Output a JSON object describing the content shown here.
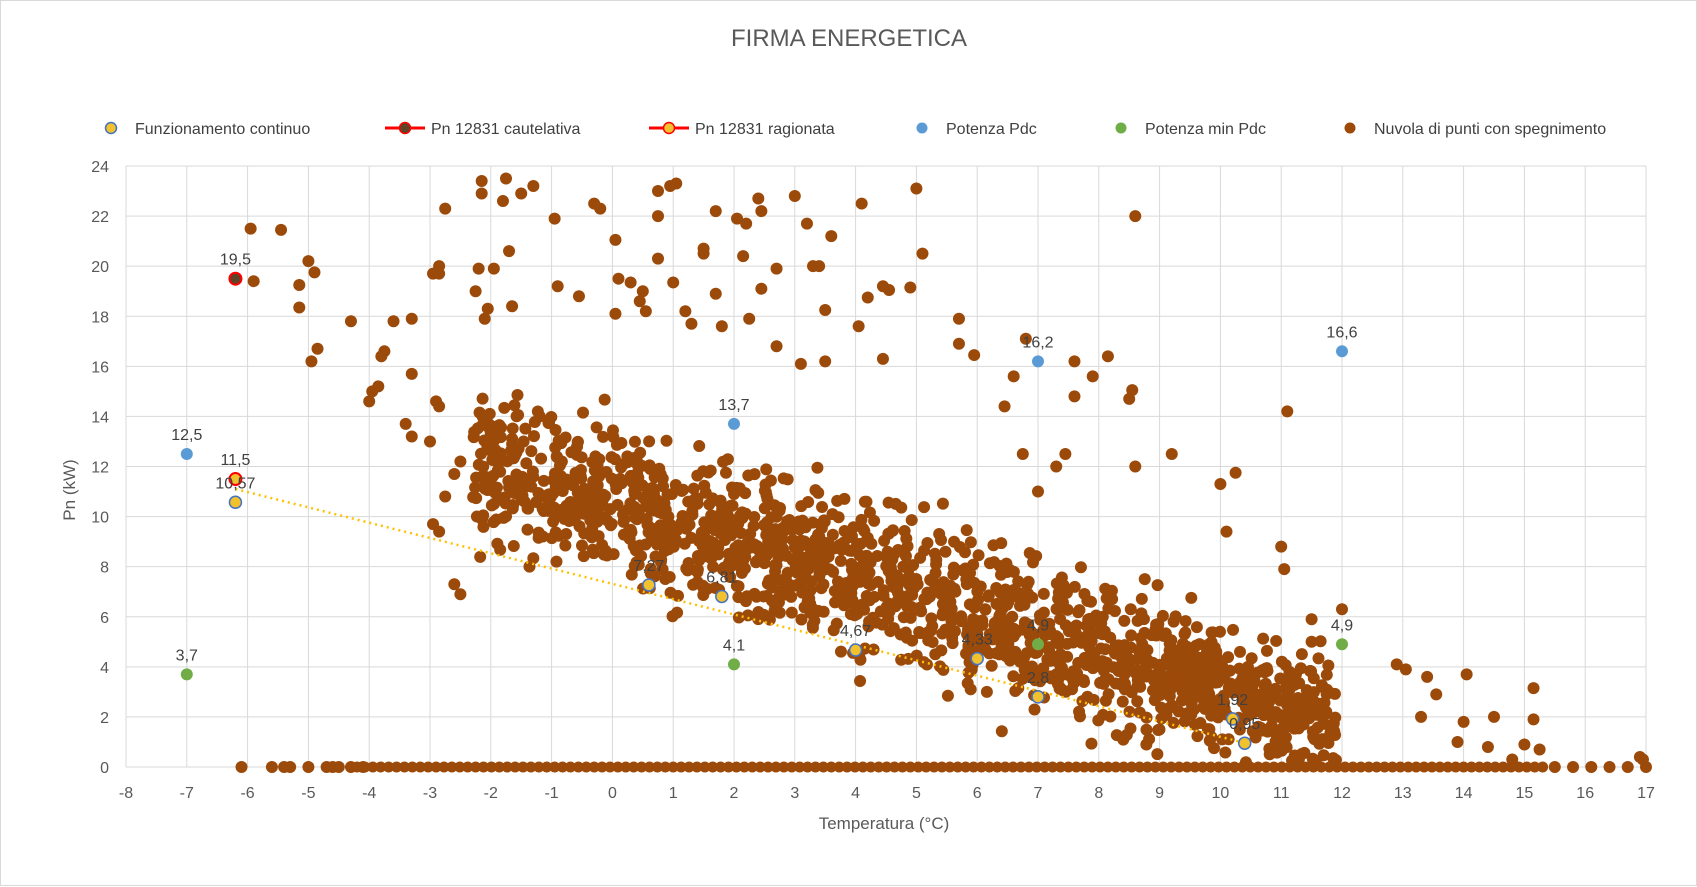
{
  "chart_data": {
    "type": "scatter",
    "title": "FIRMA ENERGETICA",
    "xlabel": "Temperatura (°C)",
    "ylabel": "Pn (kW)",
    "xlim": [
      -8,
      17
    ],
    "ylim": [
      0,
      24
    ],
    "x_ticks": [
      -8,
      -7,
      -6,
      -5,
      -4,
      -3,
      -2,
      -1,
      0,
      1,
      2,
      3,
      4,
      5,
      6,
      7,
      8,
      9,
      10,
      11,
      12,
      13,
      14,
      15,
      16,
      17
    ],
    "y_ticks": [
      0,
      2,
      4,
      6,
      8,
      10,
      12,
      14,
      16,
      18,
      20,
      22,
      24
    ],
    "grid": {
      "x": true,
      "y": true
    },
    "legend_position": "top",
    "colors": {
      "brown": "#9c4a0a",
      "gold": "#f2c12e",
      "gold_outline": "#4472c4",
      "red": "#ff0000",
      "blue": "#5b9bd5",
      "green": "#70ad47",
      "grid": "#d9d9d9",
      "text": "#595959"
    },
    "series": [
      {
        "name": "Funzionamento continuo",
        "marker": "gold-circle",
        "points": [
          {
            "x": -6.2,
            "y": 10.57,
            "label": "10,57"
          },
          {
            "x": 0.6,
            "y": 7.27,
            "label": "7,27"
          },
          {
            "x": 1.8,
            "y": 6.81,
            "label": "6,81"
          },
          {
            "x": 4.0,
            "y": 4.67,
            "label": "4,67"
          },
          {
            "x": 6.0,
            "y": 4.33,
            "label": "4,33"
          },
          {
            "x": 7.0,
            "y": 2.8,
            "label": "2,8"
          },
          {
            "x": 10.2,
            "y": 1.92,
            "label": "1,92"
          },
          {
            "x": 10.4,
            "y": 0.95,
            "label": "0,95"
          }
        ]
      },
      {
        "name": "Pn 12831 cautelativa",
        "marker": "red-line-dark-circle",
        "points": [
          {
            "x": -6.2,
            "y": 19.5,
            "label": "19,5"
          }
        ]
      },
      {
        "name": "Pn 12831 ragionata",
        "marker": "red-line-gold-circle",
        "points": [
          {
            "x": -6.2,
            "y": 11.5,
            "label": "11,5"
          }
        ]
      },
      {
        "name": "Potenza Pdc",
        "marker": "blue-circle",
        "points": [
          {
            "x": -7,
            "y": 12.5,
            "label": "12,5"
          },
          {
            "x": 2,
            "y": 13.7,
            "label": "13,7"
          },
          {
            "x": 7,
            "y": 16.2,
            "label": "16,2"
          },
          {
            "x": 12,
            "y": 16.6,
            "label": "16,6"
          }
        ]
      },
      {
        "name": "Potenza min Pdc",
        "marker": "green-circle",
        "points": [
          {
            "x": -7,
            "y": 3.7,
            "label": "3,7"
          },
          {
            "x": 2,
            "y": 4.1,
            "label": "4,1"
          },
          {
            "x": 7,
            "y": 4.9,
            "label": "4,9"
          },
          {
            "x": 12,
            "y": 4.9,
            "label": "4,9"
          }
        ]
      },
      {
        "name": "Nuvola di punti con spegnimento",
        "marker": "brown-circle",
        "points": [
          [
            -5.95,
            21.5
          ],
          [
            -5.45,
            21.45
          ],
          [
            -5.0,
            20.2
          ],
          [
            -4.9,
            19.75
          ],
          [
            -5.15,
            19.25
          ],
          [
            -5.9,
            19.4
          ],
          [
            -5.15,
            18.35
          ],
          [
            -4.85,
            16.7
          ],
          [
            -4.95,
            16.2
          ],
          [
            -4.3,
            17.8
          ],
          [
            -3.6,
            17.8
          ],
          [
            -3.3,
            17.9
          ],
          [
            -4.0,
            14.6
          ],
          [
            -3.95,
            15.0
          ],
          [
            -3.85,
            15.2
          ],
          [
            -3.8,
            16.4
          ],
          [
            -3.75,
            16.6
          ],
          [
            -3.3,
            15.7
          ],
          [
            -3.4,
            13.7
          ],
          [
            -3.3,
            13.2
          ],
          [
            -2.75,
            22.3
          ],
          [
            -2.95,
            19.7
          ],
          [
            -2.85,
            20.0
          ],
          [
            -2.85,
            19.7
          ],
          [
            -3.0,
            13.0
          ],
          [
            -2.9,
            14.6
          ],
          [
            -2.85,
            14.4
          ],
          [
            -2.95,
            9.7
          ],
          [
            -2.85,
            9.4
          ],
          [
            -2.75,
            10.8
          ],
          [
            -2.6,
            11.7
          ],
          [
            -2.5,
            12.2
          ],
          [
            -2.6,
            7.3
          ],
          [
            -2.5,
            6.9
          ],
          [
            -2.15,
            23.4
          ],
          [
            -2.15,
            22.9
          ],
          [
            -1.75,
            23.5
          ],
          [
            -1.3,
            23.2
          ],
          [
            -1.5,
            22.9
          ],
          [
            -1.8,
            22.6
          ],
          [
            -1.95,
            19.9
          ],
          [
            -2.2,
            19.9
          ],
          [
            -2.25,
            19.0
          ],
          [
            -1.7,
            20.6
          ],
          [
            -2.1,
            17.9
          ],
          [
            -2.05,
            18.3
          ],
          [
            -1.65,
            18.4
          ],
          [
            -0.95,
            21.9
          ],
          [
            -0.3,
            22.5
          ],
          [
            -0.2,
            22.3
          ],
          [
            -0.9,
            19.2
          ],
          [
            -0.55,
            18.8
          ],
          [
            0.05,
            21.05
          ],
          [
            0.1,
            19.5
          ],
          [
            0.3,
            19.35
          ],
          [
            0.05,
            18.1
          ],
          [
            0.45,
            18.6
          ],
          [
            0.5,
            19.0
          ],
          [
            0.55,
            18.2
          ],
          [
            0.75,
            22.0
          ],
          [
            0.75,
            23.0
          ],
          [
            0.95,
            23.2
          ],
          [
            1.05,
            23.3
          ],
          [
            0.75,
            20.3
          ],
          [
            1.0,
            19.35
          ],
          [
            1.2,
            18.2
          ],
          [
            1.3,
            17.7
          ],
          [
            1.5,
            20.7
          ],
          [
            1.5,
            20.5
          ],
          [
            1.7,
            22.2
          ],
          [
            1.7,
            18.9
          ],
          [
            1.8,
            17.6
          ],
          [
            2.05,
            21.9
          ],
          [
            2.15,
            20.4
          ],
          [
            2.2,
            21.7
          ],
          [
            2.4,
            22.7
          ],
          [
            2.45,
            22.2
          ],
          [
            2.45,
            19.1
          ],
          [
            2.7,
            19.9
          ],
          [
            2.25,
            17.9
          ],
          [
            3.0,
            22.8
          ],
          [
            3.2,
            21.7
          ],
          [
            3.3,
            20.0
          ],
          [
            3.4,
            20.0
          ],
          [
            3.5,
            18.25
          ],
          [
            3.6,
            21.2
          ],
          [
            4.1,
            22.5
          ],
          [
            4.2,
            18.75
          ],
          [
            4.45,
            19.2
          ],
          [
            4.55,
            19.05
          ],
          [
            4.9,
            19.15
          ],
          [
            5.0,
            23.1
          ],
          [
            5.1,
            20.5
          ],
          [
            5.7,
            17.9
          ],
          [
            5.7,
            16.9
          ],
          [
            5.95,
            16.45
          ],
          [
            4.05,
            17.6
          ],
          [
            4.45,
            16.3
          ],
          [
            3.5,
            16.2
          ],
          [
            3.1,
            16.1
          ],
          [
            2.7,
            16.8
          ],
          [
            6.45,
            14.4
          ],
          [
            6.6,
            15.6
          ],
          [
            6.8,
            17.1
          ],
          [
            6.75,
            12.5
          ],
          [
            7.0,
            11.0
          ],
          [
            7.3,
            12.0
          ],
          [
            7.45,
            12.5
          ],
          [
            7.6,
            16.2
          ],
          [
            7.6,
            14.8
          ],
          [
            7.9,
            15.6
          ],
          [
            8.15,
            16.4
          ],
          [
            8.6,
            22.0
          ],
          [
            8.55,
            15.05
          ],
          [
            8.5,
            14.7
          ],
          [
            8.6,
            12.0
          ],
          [
            9.2,
            12.5
          ],
          [
            10.0,
            11.3
          ],
          [
            10.25,
            11.75
          ],
          [
            10.1,
            9.4
          ],
          [
            11.0,
            8.8
          ],
          [
            11.05,
            7.9
          ],
          [
            11.1,
            14.2
          ],
          [
            11.5,
            5.9
          ],
          [
            11.5,
            5.0
          ],
          [
            12.0,
            6.3
          ],
          [
            13.4,
            3.6
          ],
          [
            14.05,
            3.7
          ],
          [
            14.5,
            2.0
          ],
          [
            15.15,
            3.15
          ],
          [
            15.15,
            1.9
          ],
          [
            15.25,
            0.7
          ],
          [
            12.9,
            4.1
          ],
          [
            13.05,
            3.9
          ],
          [
            13.55,
            2.9
          ],
          [
            13.3,
            2.0
          ],
          [
            14.0,
            1.8
          ],
          [
            13.9,
            1.0
          ],
          [
            14.4,
            0.8
          ],
          [
            14.8,
            0.3
          ],
          [
            15.0,
            0.9
          ],
          [
            16.9,
            0.4
          ],
          [
            16.95,
            0.3
          ],
          [
            -6.1,
            0
          ],
          [
            -5.6,
            0
          ],
          [
            -5.4,
            0
          ],
          [
            -5.3,
            0
          ],
          [
            -5.0,
            0
          ],
          [
            -4.7,
            0
          ],
          [
            -4.6,
            0
          ],
          [
            -4.5,
            0
          ],
          [
            -4.3,
            0
          ],
          [
            -4.1,
            0
          ],
          [
            15.5,
            0
          ],
          [
            15.8,
            0
          ],
          [
            16.1,
            0
          ],
          [
            16.4,
            0
          ],
          [
            16.7,
            0
          ],
          [
            17.0,
            0
          ]
        ]
      }
    ],
    "trendline": {
      "series": "Funzionamento continuo",
      "style": "dotted",
      "color": "#ffc000",
      "from": {
        "x": -6.2,
        "y": 11.1
      },
      "to": {
        "x": 10.5,
        "y": 0.9
      }
    }
  }
}
